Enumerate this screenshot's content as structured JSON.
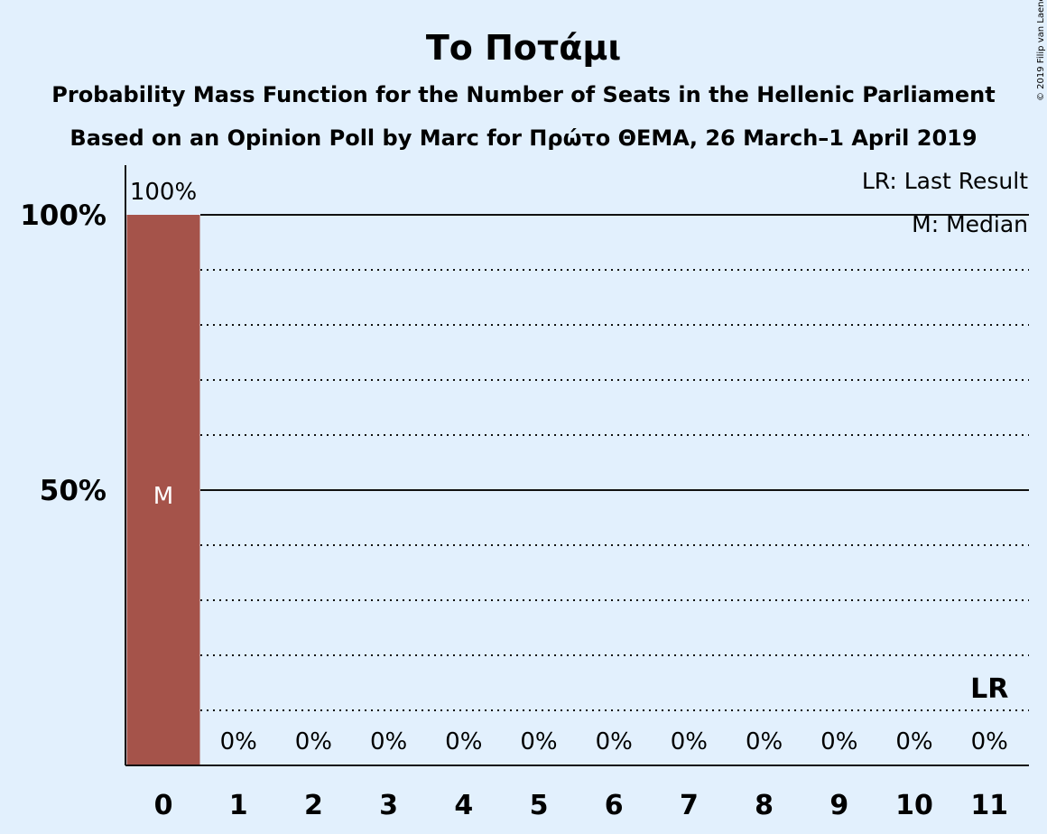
{
  "title": "Το Ποτάμι",
  "subtitle_1": "Probability Mass Function for the Number of Seats in the Hellenic Parliament",
  "subtitle_2": "Based on an Opinion Poll by Marc for Πρώτο ΘΕΜΑ, 26 March–1 April 2019",
  "legend": {
    "last_result": "LR: Last Result",
    "median": "M: Median"
  },
  "credit": "© 2019 Filip van Laenen",
  "colors": {
    "background": "#e2f0fd",
    "bar": "#a5534a",
    "text": "#111111"
  },
  "chart_data": {
    "type": "bar",
    "categories": [
      "0",
      "1",
      "2",
      "3",
      "4",
      "5",
      "6",
      "7",
      "8",
      "9",
      "10",
      "11"
    ],
    "values": [
      100,
      0,
      0,
      0,
      0,
      0,
      0,
      0,
      0,
      0,
      0,
      0
    ],
    "value_labels": [
      "100%",
      "0%",
      "0%",
      "0%",
      "0%",
      "0%",
      "0%",
      "0%",
      "0%",
      "0%",
      "0%",
      "0%"
    ],
    "y_ticks": [
      {
        "value": 50,
        "label": "50%"
      },
      {
        "value": 100,
        "label": "100%"
      }
    ],
    "ylim": [
      0,
      100
    ],
    "dotted_gridlines": [
      10,
      20,
      30,
      40,
      60,
      70,
      80,
      90
    ],
    "solid_gridlines": [
      50,
      100
    ],
    "median_seats": 0,
    "median_label": "M",
    "last_result_seats": 11,
    "last_result_label": "LR",
    "grid": true,
    "legend_position": "top-right"
  }
}
